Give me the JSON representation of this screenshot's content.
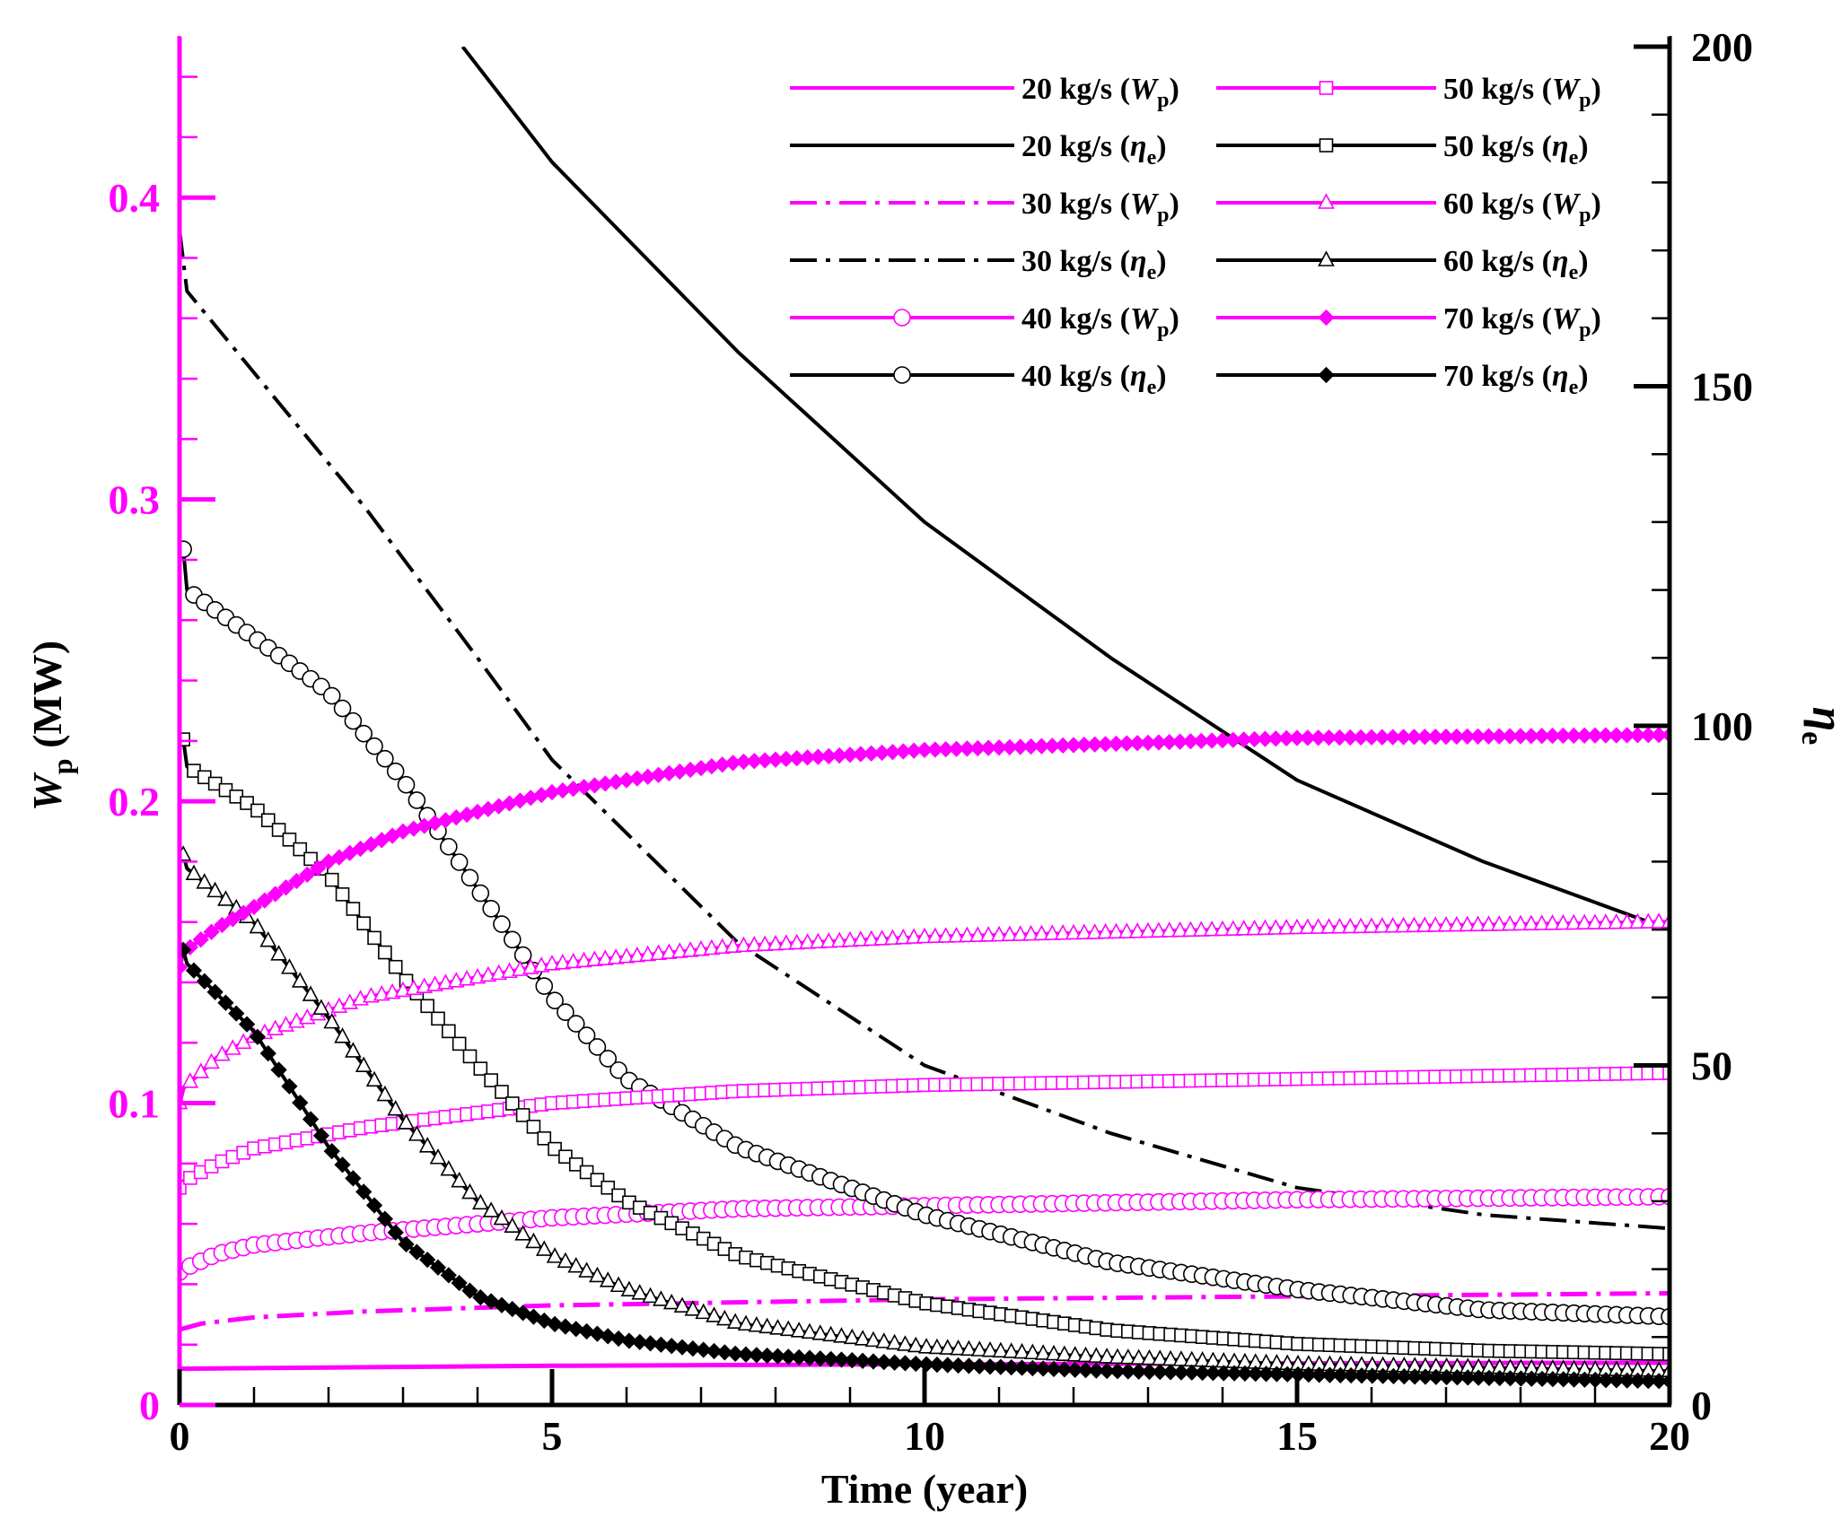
{
  "chart_data": {
    "type": "line",
    "title": "",
    "xlabel": "Time (year)",
    "ylabel_left": {
      "main": "W",
      "sub": "p",
      "unit": " (MW)"
    },
    "ylabel_right": {
      "main": "η",
      "sub": "e"
    },
    "xlim": [
      0,
      20
    ],
    "ylim_left": [
      0,
      0.45
    ],
    "ylim_right": [
      0,
      200
    ],
    "xticks": [
      "0",
      "5",
      "10",
      "15",
      "20"
    ],
    "yticks_left": [
      "0",
      "0.1",
      "0.2",
      "0.3",
      "0.4"
    ],
    "yticks_right": [
      "0",
      "50",
      "100",
      "150",
      "200"
    ],
    "colors": {
      "wp": "#ff00ff",
      "eta": "#000000",
      "axis_left": "#ff00ff",
      "axis": "#000000"
    },
    "series": [
      {
        "name": "20 kg/s",
        "var": "W",
        "sub": "p",
        "kind": "wp",
        "axis": "left",
        "style": "solid",
        "marker": "none",
        "x": [
          0,
          5,
          10,
          15,
          20
        ],
        "y": [
          0.012,
          0.013,
          0.0135,
          0.0138,
          0.014
        ]
      },
      {
        "name": "20 kg/s",
        "var": "η",
        "sub": "e",
        "kind": "eta",
        "axis": "right",
        "style": "solid",
        "marker": "none",
        "x": [
          3.8,
          5,
          7.5,
          10,
          12.5,
          15,
          17.5,
          20
        ],
        "y": [
          200,
          183,
          155,
          130,
          110,
          92,
          80,
          70
        ]
      },
      {
        "name": "30 kg/s",
        "var": "W",
        "sub": "p",
        "kind": "wp",
        "axis": "left",
        "style": "dashdot",
        "marker": "none",
        "x": [
          0,
          0.3,
          1,
          2.5,
          5,
          10,
          15,
          20
        ],
        "y": [
          0.025,
          0.027,
          0.029,
          0.031,
          0.033,
          0.035,
          0.036,
          0.037
        ]
      },
      {
        "name": "30 kg/s",
        "var": "η",
        "sub": "e",
        "kind": "eta",
        "axis": "right",
        "style": "dashdot",
        "marker": "none",
        "x": [
          0,
          0.1,
          1,
          2.5,
          4,
          5,
          7.5,
          10,
          12.5,
          15,
          17.5,
          20
        ],
        "y": [
          173,
          164,
          152,
          132,
          110,
          95,
          68,
          50,
          40,
          32,
          28,
          26
        ]
      },
      {
        "name": "40 kg/s",
        "var": "W",
        "sub": "p",
        "kind": "wp",
        "axis": "left",
        "style": "solid",
        "marker": "circle",
        "x": [
          0,
          0.05,
          0.5,
          1,
          2.5,
          5,
          7.5,
          10,
          15,
          20
        ],
        "y": [
          0.044,
          0.045,
          0.05,
          0.053,
          0.057,
          0.062,
          0.065,
          0.066,
          0.068,
          0.069
        ]
      },
      {
        "name": "40 kg/s",
        "var": "η",
        "sub": "e",
        "kind": "eta",
        "axis": "right",
        "style": "solid",
        "marker": "circle",
        "x": [
          0.05,
          0.1,
          1,
          2,
          3,
          4,
          5,
          6,
          7.5,
          10,
          12.5,
          15,
          17.5,
          20
        ],
        "y": [
          126,
          120,
          113,
          105,
          92,
          76,
          60,
          48,
          38,
          28,
          21,
          17,
          14,
          13
        ]
      },
      {
        "name": "50 kg/s",
        "var": "W",
        "sub": "p",
        "kind": "wp",
        "axis": "left",
        "style": "solid",
        "marker": "square",
        "x": [
          0,
          0.05,
          0.5,
          1,
          2.5,
          5,
          7.5,
          10,
          15,
          20
        ],
        "y": [
          0.072,
          0.074,
          0.08,
          0.085,
          0.092,
          0.1,
          0.104,
          0.106,
          0.108,
          0.11
        ]
      },
      {
        "name": "50 kg/s",
        "var": "η",
        "sub": "e",
        "kind": "eta",
        "axis": "right",
        "style": "solid",
        "marker": "square",
        "x": [
          0.05,
          0.1,
          1,
          2,
          3,
          4,
          5,
          6,
          7.5,
          10,
          12.5,
          15,
          17.5,
          20
        ],
        "y": [
          98,
          94,
          88,
          78,
          63,
          50,
          38,
          30,
          22,
          15,
          11,
          9,
          8,
          7.5
        ]
      },
      {
        "name": "60 kg/s",
        "var": "W",
        "sub": "p",
        "kind": "wp",
        "axis": "left",
        "style": "solid",
        "marker": "triangle",
        "x": [
          0,
          0.05,
          0.5,
          1,
          2.5,
          5,
          7.5,
          10,
          15,
          20
        ],
        "y": [
          0.1,
          0.105,
          0.115,
          0.122,
          0.135,
          0.146,
          0.152,
          0.155,
          0.158,
          0.16
        ]
      },
      {
        "name": "60 kg/s",
        "var": "η",
        "sub": "e",
        "kind": "eta",
        "axis": "right",
        "style": "solid",
        "marker": "triangle",
        "x": [
          0.05,
          0.1,
          1,
          2,
          3,
          4,
          5,
          6,
          7.5,
          10,
          12.5,
          15,
          17.5,
          20
        ],
        "y": [
          81,
          79,
          71,
          57,
          42,
          30,
          22,
          17,
          12,
          8.5,
          7,
          6,
          5.5,
          5
        ]
      },
      {
        "name": "70 kg/s",
        "var": "W",
        "sub": "p",
        "kind": "wp",
        "axis": "left",
        "style": "solid",
        "marker": "diamond",
        "x": [
          0,
          0.05,
          0.5,
          1,
          2,
          3,
          5,
          7.5,
          10,
          15,
          20
        ],
        "y": [
          0.145,
          0.15,
          0.158,
          0.165,
          0.18,
          0.19,
          0.203,
          0.213,
          0.217,
          0.221,
          0.222
        ]
      },
      {
        "name": "70 kg/s",
        "var": "η",
        "sub": "e",
        "kind": "eta",
        "axis": "right",
        "style": "solid",
        "marker": "diamond",
        "x": [
          0.05,
          0.1,
          1,
          2,
          3,
          4,
          5,
          6,
          7.5,
          10,
          12.5,
          15,
          17.5,
          20
        ],
        "y": [
          67,
          65,
          55,
          38,
          24,
          16,
          12,
          9.5,
          7.5,
          6,
          5,
          4.5,
          4,
          3.5
        ]
      }
    ]
  }
}
